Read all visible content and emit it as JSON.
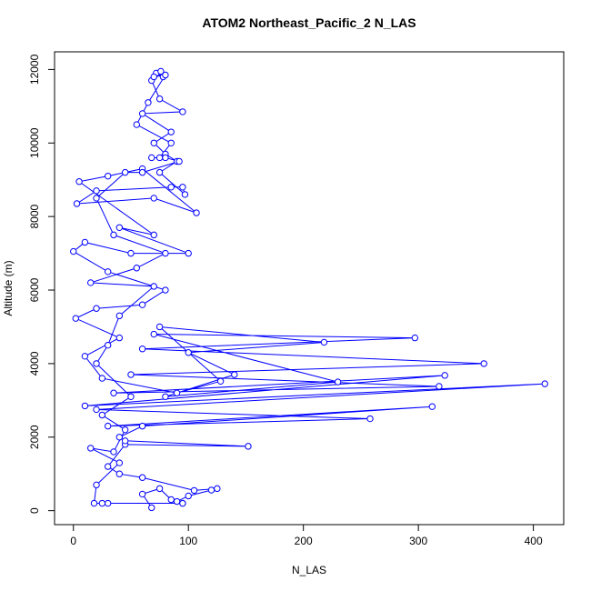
{
  "chart_data": {
    "type": "line",
    "markers": true,
    "title": "ATOM2 Northeast_Pacific_2 N_LAS",
    "x_label": "N_LAS",
    "y_label": "Altitude (m)",
    "color": "#0000ff",
    "xlim": [
      -16.4,
      426.4
    ],
    "ylim": [
      -380,
      12480
    ],
    "xticks": [
      0,
      100,
      200,
      300,
      400
    ],
    "yticks": [
      0,
      2000,
      4000,
      6000,
      8000,
      10000,
      12000
    ],
    "x": [
      68,
      60,
      75,
      85,
      95,
      90,
      100,
      120,
      125,
      105,
      60,
      40,
      30,
      45,
      152,
      45,
      40,
      60,
      312,
      30,
      258,
      20,
      410,
      10,
      323,
      35,
      318,
      50,
      357,
      60,
      297,
      70,
      230,
      80,
      140,
      100,
      218,
      75,
      128,
      90,
      25,
      10,
      40,
      2,
      20,
      60,
      80,
      30,
      0,
      10,
      50,
      100,
      40,
      70,
      5,
      30,
      60,
      107,
      70,
      3,
      20,
      85,
      95,
      97,
      75,
      90,
      80,
      70,
      85,
      60,
      95,
      75,
      68,
      72,
      78,
      76,
      70,
      80,
      65,
      55,
      85,
      75,
      68,
      80,
      92,
      60,
      45,
      20,
      35,
      80,
      55,
      15,
      70,
      40,
      30,
      20,
      50,
      25,
      45,
      35,
      15,
      40,
      20,
      18,
      25,
      30,
      95
    ],
    "y": [
      80,
      450,
      600,
      300,
      200,
      250,
      400,
      560,
      600,
      550,
      900,
      1000,
      1200,
      1800,
      1750,
      1900,
      2000,
      2300,
      2830,
      2300,
      2500,
      2750,
      3450,
      2850,
      3680,
      3200,
      3380,
      3700,
      4000,
      4400,
      4700,
      4800,
      3500,
      3100,
      3700,
      4300,
      4580,
      5000,
      3520,
      3200,
      3600,
      4200,
      4700,
      5230,
      5500,
      5600,
      6000,
      6500,
      7050,
      7300,
      7000,
      7000,
      7700,
      7500,
      8950,
      9100,
      9300,
      8100,
      8500,
      8350,
      8700,
      8800,
      8800,
      8600,
      9200,
      9500,
      9700,
      10000,
      10300,
      10800,
      10850,
      11200,
      11700,
      11900,
      11800,
      11950,
      11800,
      11850,
      11100,
      10500,
      10000,
      9600,
      9600,
      9600,
      9500,
      9200,
      9200,
      8500,
      7500,
      7000,
      6600,
      6200,
      6100,
      5300,
      4500,
      4000,
      3100,
      2600,
      2200,
      1600,
      1700,
      1300,
      700,
      200,
      200,
      200,
      200
    ]
  }
}
